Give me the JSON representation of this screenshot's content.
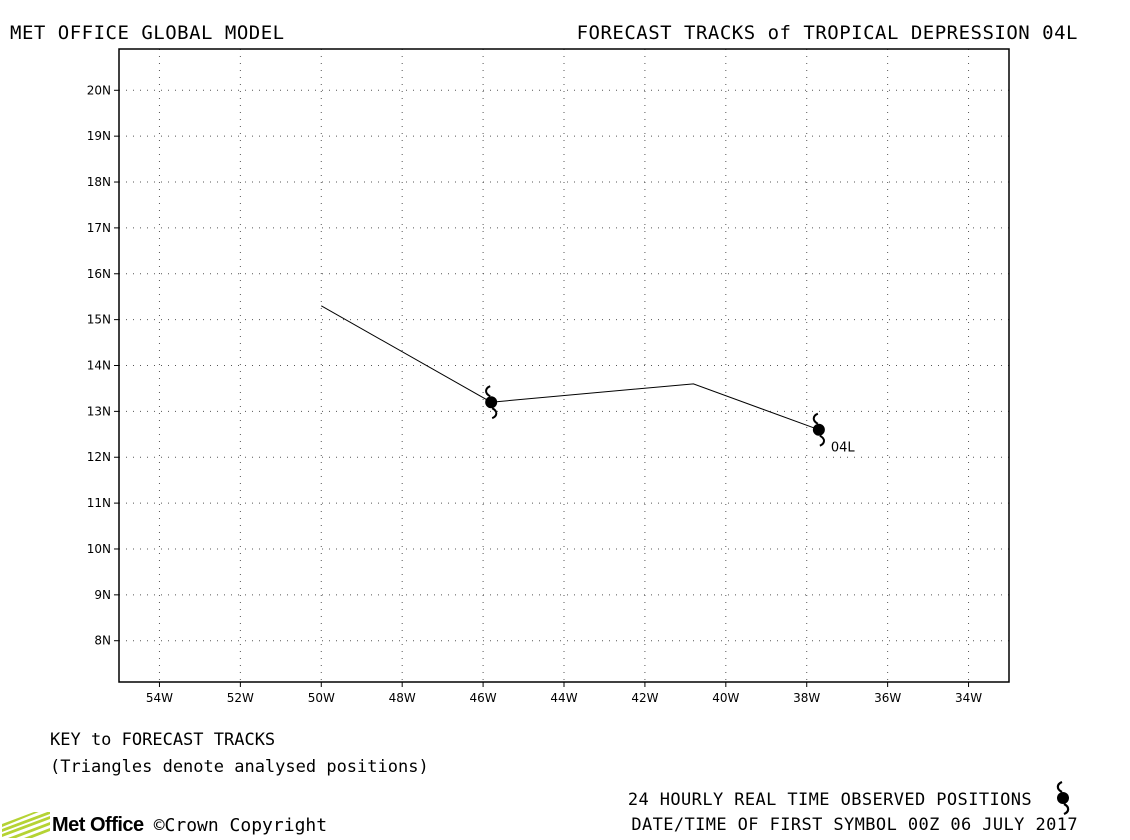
{
  "header": {
    "left_title": "MET OFFICE GLOBAL MODEL",
    "right_title": "FORECAST TRACKS of TROPICAL DEPRESSION 04L"
  },
  "map": {
    "lon_range": [
      -55,
      -33
    ],
    "lat_range": [
      7.1,
      20.9
    ],
    "lon_ticks": [
      -54,
      -52,
      -50,
      -48,
      -46,
      -44,
      -42,
      -40,
      -38,
      -36,
      -34
    ],
    "lon_tick_labels": [
      "54W",
      "52W",
      "50W",
      "48W",
      "46W",
      "44W",
      "42W",
      "40W",
      "38W",
      "36W",
      "34W"
    ],
    "lat_ticks": [
      20,
      19,
      18,
      17,
      16,
      15,
      14,
      13,
      12,
      11,
      10,
      9,
      8
    ],
    "lat_tick_labels": [
      "20N",
      "19N",
      "18N",
      "17N",
      "16N",
      "15N",
      "14N",
      "13N",
      "12N",
      "11N",
      "10N",
      "9N",
      "8N"
    ],
    "grid": true
  },
  "chart_data": {
    "type": "line",
    "xlabel": "",
    "ylabel": "",
    "series": [
      {
        "name": "04L",
        "lon": [
          -37.7,
          -40.8,
          -45.8,
          -50.0
        ],
        "lat": [
          12.6,
          13.6,
          13.2,
          15.3
        ]
      }
    ],
    "observed_positions": [
      {
        "lon": -37.7,
        "lat": 12.6
      },
      {
        "lon": -45.8,
        "lat": 13.2
      }
    ],
    "storm_label": "04L"
  },
  "key": {
    "title": "KEY to FORECAST TRACKS",
    "note": "(Triangles denote analysed positions)"
  },
  "observed": {
    "label": "24 HOURLY REAL TIME OBSERVED POSITIONS",
    "date_line": "DATE/TIME OF FIRST SYMBOL 00Z 06 JULY 2017"
  },
  "footer": {
    "logo_text": "Met Office",
    "copyright": "©Crown Copyright"
  },
  "colors": {
    "logo_green": "#b5d334",
    "frame": "#000000"
  },
  "icons": {
    "storm_symbol": "tropical-cyclone-icon",
    "logo_mark": "met-office-stripes-icon"
  }
}
